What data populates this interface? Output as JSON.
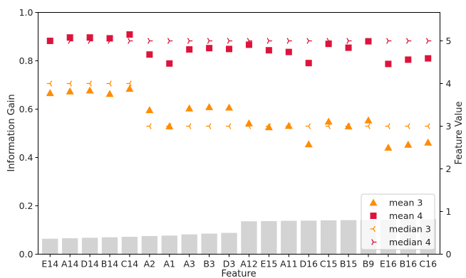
{
  "chart_data": {
    "type": "bar",
    "title": "",
    "xlabel": "Feature",
    "ylabel": "Information Gain",
    "ylabel_right": "Feature Value",
    "ylim": [
      0,
      1.0
    ],
    "ylim_right": [
      0,
      5.6667
    ],
    "yticks": [
      "0.0",
      "0.2",
      "0.4",
      "0.6",
      "0.8",
      "1.0"
    ],
    "yticks_right": [
      "0",
      "1",
      "2",
      "3",
      "4",
      "5"
    ],
    "categories": [
      "E14",
      "A14",
      "D14",
      "B14",
      "C14",
      "A2",
      "A1",
      "A3",
      "B3",
      "D3",
      "A12",
      "E15",
      "A11",
      "D16",
      "C15",
      "B15",
      "B9",
      "E16",
      "B16",
      "C16"
    ],
    "bar_values": [
      0.064,
      0.066,
      0.068,
      0.07,
      0.072,
      0.075,
      0.077,
      0.082,
      0.085,
      0.088,
      0.136,
      0.137,
      0.138,
      0.139,
      0.14,
      0.141,
      0.142,
      0.143,
      0.144,
      0.145
    ],
    "bar_color": "#d3d3d3",
    "series": [
      {
        "name": "mean 3",
        "axis": "right",
        "marker": "triangle",
        "color": "#ff8c00",
        "values": [
          3.78,
          3.82,
          3.84,
          3.76,
          3.88,
          3.38,
          3.0,
          3.42,
          3.45,
          3.44,
          3.07,
          2.98,
          3.01,
          2.58,
          3.11,
          3.0,
          3.14,
          2.5,
          2.57,
          2.62
        ]
      },
      {
        "name": "mean 4",
        "axis": "right",
        "marker": "square",
        "color": "#dc143c",
        "values": [
          5.0,
          5.08,
          5.08,
          5.06,
          5.15,
          4.68,
          4.47,
          4.8,
          4.83,
          4.81,
          4.91,
          4.78,
          4.74,
          4.48,
          4.93,
          4.84,
          4.99,
          4.46,
          4.56,
          4.59
        ]
      },
      {
        "name": "median 3",
        "axis": "right",
        "marker": "tri_left",
        "color": "#ff8c00",
        "values": [
          4.0,
          4.0,
          4.0,
          4.0,
          4.0,
          3.0,
          3.0,
          3.0,
          3.0,
          3.0,
          3.0,
          3.0,
          3.0,
          3.0,
          3.0,
          3.0,
          3.0,
          3.0,
          3.0,
          3.0
        ]
      },
      {
        "name": "median 4",
        "axis": "right",
        "marker": "tri_right",
        "color": "#dc143c",
        "values": [
          5.0,
          5.0,
          5.0,
          5.0,
          5.0,
          5.0,
          5.0,
          5.0,
          5.0,
          5.0,
          5.0,
          5.0,
          5.0,
          5.0,
          5.0,
          5.0,
          5.0,
          5.0,
          5.0,
          5.0
        ]
      }
    ],
    "legend": {
      "position": "bottom-right",
      "entries": [
        "mean 3",
        "mean 4",
        "median 3",
        "median 4"
      ]
    },
    "grid": false
  }
}
